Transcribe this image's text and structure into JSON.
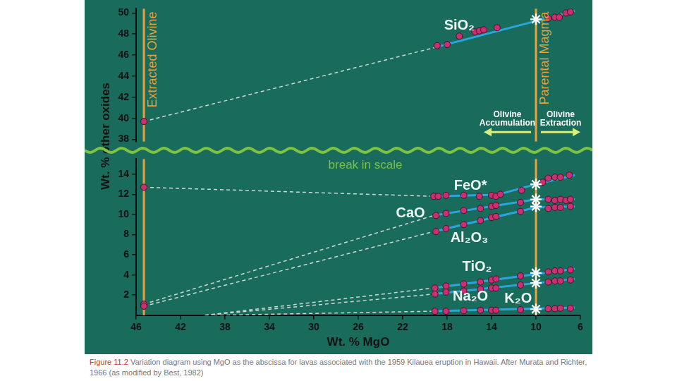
{
  "caption": {
    "label": "Figure 11.2",
    "text": "Variation diagram using MgO as the abscissa for lavas associated with the 1959 Kilauea eruption in Hawaii. After Murata and Richter, 1966 (as modified by Best, 1982)"
  },
  "break_label": "break in scale",
  "chart_data": [
    {
      "type": "scatter",
      "ylabel": "Wt. % other oxides",
      "xlim": [
        46,
        6
      ],
      "ylim": [
        37.8,
        50.4
      ],
      "yticks": [
        38,
        40,
        42,
        44,
        46,
        48,
        50
      ],
      "grid": false,
      "tick_labels": "y",
      "vlines": [
        {
          "x": 45.3,
          "label": "Extracted Olivine",
          "color": "#e9a23b"
        },
        {
          "x": 10,
          "label": "Parental Magma",
          "color": "#e9a23b"
        }
      ],
      "arrows": [
        {
          "text": [
            "Olivine",
            "Accumulation"
          ],
          "y": 38.7,
          "from": 10,
          "to": 14.7,
          "color": "#d6f07c"
        },
        {
          "text": [
            "Olivine",
            "Extraction"
          ],
          "y": 38.7,
          "from": 10,
          "to": 6,
          "color": "#d6f07c"
        }
      ],
      "annotations": [
        {
          "text": "SiO₂",
          "x": 16.9,
          "y": 48.8,
          "color": "#eef7f3"
        }
      ],
      "series": [
        {
          "type": "line",
          "line_style": "dashed",
          "color": "#cfd8d4",
          "x": [
            45.3,
            19.2
          ],
          "values": [
            39.7,
            46.7
          ]
        },
        {
          "type": "line",
          "line_style": "solid",
          "color": "#2ba6dd",
          "x": [
            19.2,
            6.5
          ],
          "values": [
            46.7,
            50.2
          ]
        },
        {
          "type": "scatter",
          "marker": "circle",
          "color": "#c9306f",
          "x": [
            45.3,
            18.9,
            18.0,
            16.9,
            15.5,
            15.1,
            14.7,
            13.5,
            8.9,
            8.3,
            7.9,
            7.3,
            6.9
          ],
          "values": [
            39.7,
            46.9,
            47.0,
            47.8,
            48.2,
            48.3,
            48.4,
            48.6,
            49.5,
            49.6,
            49.6,
            50.0,
            50.1
          ]
        },
        {
          "type": "scatter",
          "marker": "star",
          "color": "#ffffff",
          "x": [
            10
          ],
          "values": [
            49.4
          ]
        }
      ]
    },
    {
      "type": "scatter",
      "xlabel": "Wt. % MgO",
      "xlim": [
        46,
        6
      ],
      "xticks": [
        46,
        42,
        38,
        34,
        30,
        26,
        22,
        18,
        14,
        10,
        6
      ],
      "ylim": [
        0,
        15.5
      ],
      "yticks": [
        2,
        4,
        6,
        8,
        10,
        12,
        14
      ],
      "grid": false,
      "annotations": [
        {
          "text": "FeO*",
          "x": 15.9,
          "y": 12.85,
          "color": "#eef7f3"
        },
        {
          "text": "CaO",
          "x": 21.3,
          "y": 10.1,
          "color": "#eef7f3"
        },
        {
          "text": "Al₂O₃",
          "x": 16.0,
          "y": 7.65,
          "color": "#eef7f3"
        },
        {
          "text": "TiO₂",
          "x": 15.3,
          "y": 4.75,
          "color": "#eef7f3"
        },
        {
          "text": "Na₂O",
          "x": 15.9,
          "y": 1.85,
          "color": "#eef7f3"
        },
        {
          "text": "K₂O",
          "x": 11.6,
          "y": 1.65,
          "color": "#eef7f3"
        }
      ],
      "series": [
        {
          "type": "line",
          "line_style": "dashed",
          "color": "#cfd8d4",
          "x": [
            45.3,
            19.2
          ],
          "values": [
            12.7,
            11.8
          ]
        },
        {
          "type": "line",
          "line_style": "dashed",
          "color": "#cfd8d4",
          "x": [
            45.3,
            19.2
          ],
          "values": [
            1.1,
            9.9
          ]
        },
        {
          "type": "line",
          "line_style": "dashed",
          "color": "#cfd8d4",
          "x": [
            45.3,
            19.2
          ],
          "values": [
            0.9,
            8.3
          ]
        },
        {
          "type": "line",
          "line_style": "dashed",
          "color": "#cfd8d4",
          "x": [
            39.8,
            19.2
          ],
          "values": [
            0,
            2.7
          ]
        },
        {
          "type": "line",
          "line_style": "dashed",
          "color": "#cfd8d4",
          "x": [
            39.8,
            19.2
          ],
          "values": [
            0,
            2.1
          ]
        },
        {
          "type": "line",
          "line_style": "dashed",
          "color": "#cfd8d4",
          "x": [
            39.0,
            19.2
          ],
          "values": [
            0,
            0.4
          ]
        },
        {
          "type": "line",
          "line_style": "solid",
          "color": "#2ba6dd",
          "x": [
            19.2,
            13.5,
            10,
            6.5
          ],
          "values": [
            11.8,
            11.95,
            13.0,
            13.9
          ]
        },
        {
          "type": "line",
          "line_style": "solid",
          "color": "#2ba6dd",
          "x": [
            19.2,
            10,
            6.5
          ],
          "values": [
            9.9,
            11.5,
            11.5
          ]
        },
        {
          "type": "line",
          "line_style": "solid",
          "color": "#2ba6dd",
          "x": [
            19.2,
            10,
            6.5
          ],
          "values": [
            8.3,
            10.7,
            10.8
          ]
        },
        {
          "type": "line",
          "line_style": "solid",
          "color": "#2ba6dd",
          "x": [
            19.2,
            6.5
          ],
          "values": [
            2.7,
            4.6
          ]
        },
        {
          "type": "line",
          "line_style": "solid",
          "color": "#2ba6dd",
          "x": [
            19.2,
            6.5
          ],
          "values": [
            2.1,
            3.6
          ]
        },
        {
          "type": "line",
          "line_style": "solid",
          "color": "#2ba6dd",
          "x": [
            19.2,
            6.5
          ],
          "values": [
            0.4,
            0.75
          ]
        },
        {
          "type": "scatter",
          "marker": "circle",
          "color": "#c9306f",
          "x": [
            19.2,
            18.8,
            18.1,
            16.5,
            15.1,
            14.0,
            13.6,
            13.2,
            11.3,
            9.4,
            8.9,
            8.3,
            7.8,
            7.0
          ],
          "values": [
            11.8,
            11.8,
            11.9,
            11.9,
            11.8,
            11.9,
            11.8,
            12.0,
            12.4,
            13.2,
            13.6,
            13.7,
            13.7,
            13.9
          ]
        },
        {
          "type": "scatter",
          "marker": "circle",
          "color": "#c9306f",
          "x": [
            19.0,
            18.1,
            16.5,
            15.0,
            14.0,
            13.6,
            11.4,
            8.9,
            8.3,
            7.8,
            7.3,
            6.9
          ],
          "values": [
            9.9,
            10.1,
            10.4,
            10.6,
            10.8,
            10.9,
            11.2,
            11.5,
            11.4,
            11.5,
            11.4,
            11.5
          ]
        },
        {
          "type": "scatter",
          "marker": "circle",
          "color": "#c9306f",
          "x": [
            19.0,
            18.1,
            16.5,
            15.0,
            14.0,
            13.6,
            11.4,
            8.9,
            8.3,
            7.8,
            6.9
          ],
          "values": [
            8.3,
            8.6,
            9.0,
            9.4,
            9.7,
            9.8,
            10.3,
            10.6,
            10.7,
            10.7,
            10.8
          ]
        },
        {
          "type": "scatter",
          "marker": "circle",
          "color": "#c9306f",
          "x": [
            19.1,
            18.1,
            16.5,
            15.0,
            14.0,
            13.6,
            11.4,
            8.9,
            8.3,
            7.8,
            6.9
          ],
          "values": [
            2.7,
            2.9,
            3.1,
            3.3,
            3.5,
            3.6,
            3.9,
            4.3,
            4.4,
            4.4,
            4.5
          ]
        },
        {
          "type": "scatter",
          "marker": "circle",
          "color": "#c9306f",
          "x": [
            19.1,
            18.1,
            16.5,
            15.0,
            14.0,
            13.6,
            11.4,
            8.9,
            8.3,
            7.8,
            6.9
          ],
          "values": [
            2.1,
            2.3,
            2.4,
            2.6,
            2.7,
            2.7,
            3.0,
            3.3,
            3.4,
            3.4,
            3.5
          ]
        },
        {
          "type": "scatter",
          "marker": "circle",
          "color": "#c9306f",
          "x": [
            19.1,
            18.1,
            16.5,
            15.0,
            14.0,
            13.6,
            11.4,
            8.9,
            8.3,
            7.8,
            6.9
          ],
          "values": [
            0.4,
            0.4,
            0.45,
            0.5,
            0.5,
            0.5,
            0.55,
            0.65,
            0.65,
            0.7,
            0.7
          ]
        },
        {
          "type": "scatter",
          "marker": "circle",
          "color": "#c9306f",
          "x": [
            45.3,
            45.3,
            45.3
          ],
          "values": [
            12.7,
            1.1,
            0.9
          ]
        },
        {
          "type": "scatter",
          "marker": "star",
          "color": "#ffffff",
          "x": [
            10,
            10,
            10,
            10,
            10,
            10
          ],
          "values": [
            13.0,
            11.5,
            10.8,
            4.2,
            3.2,
            0.6
          ]
        }
      ]
    }
  ]
}
